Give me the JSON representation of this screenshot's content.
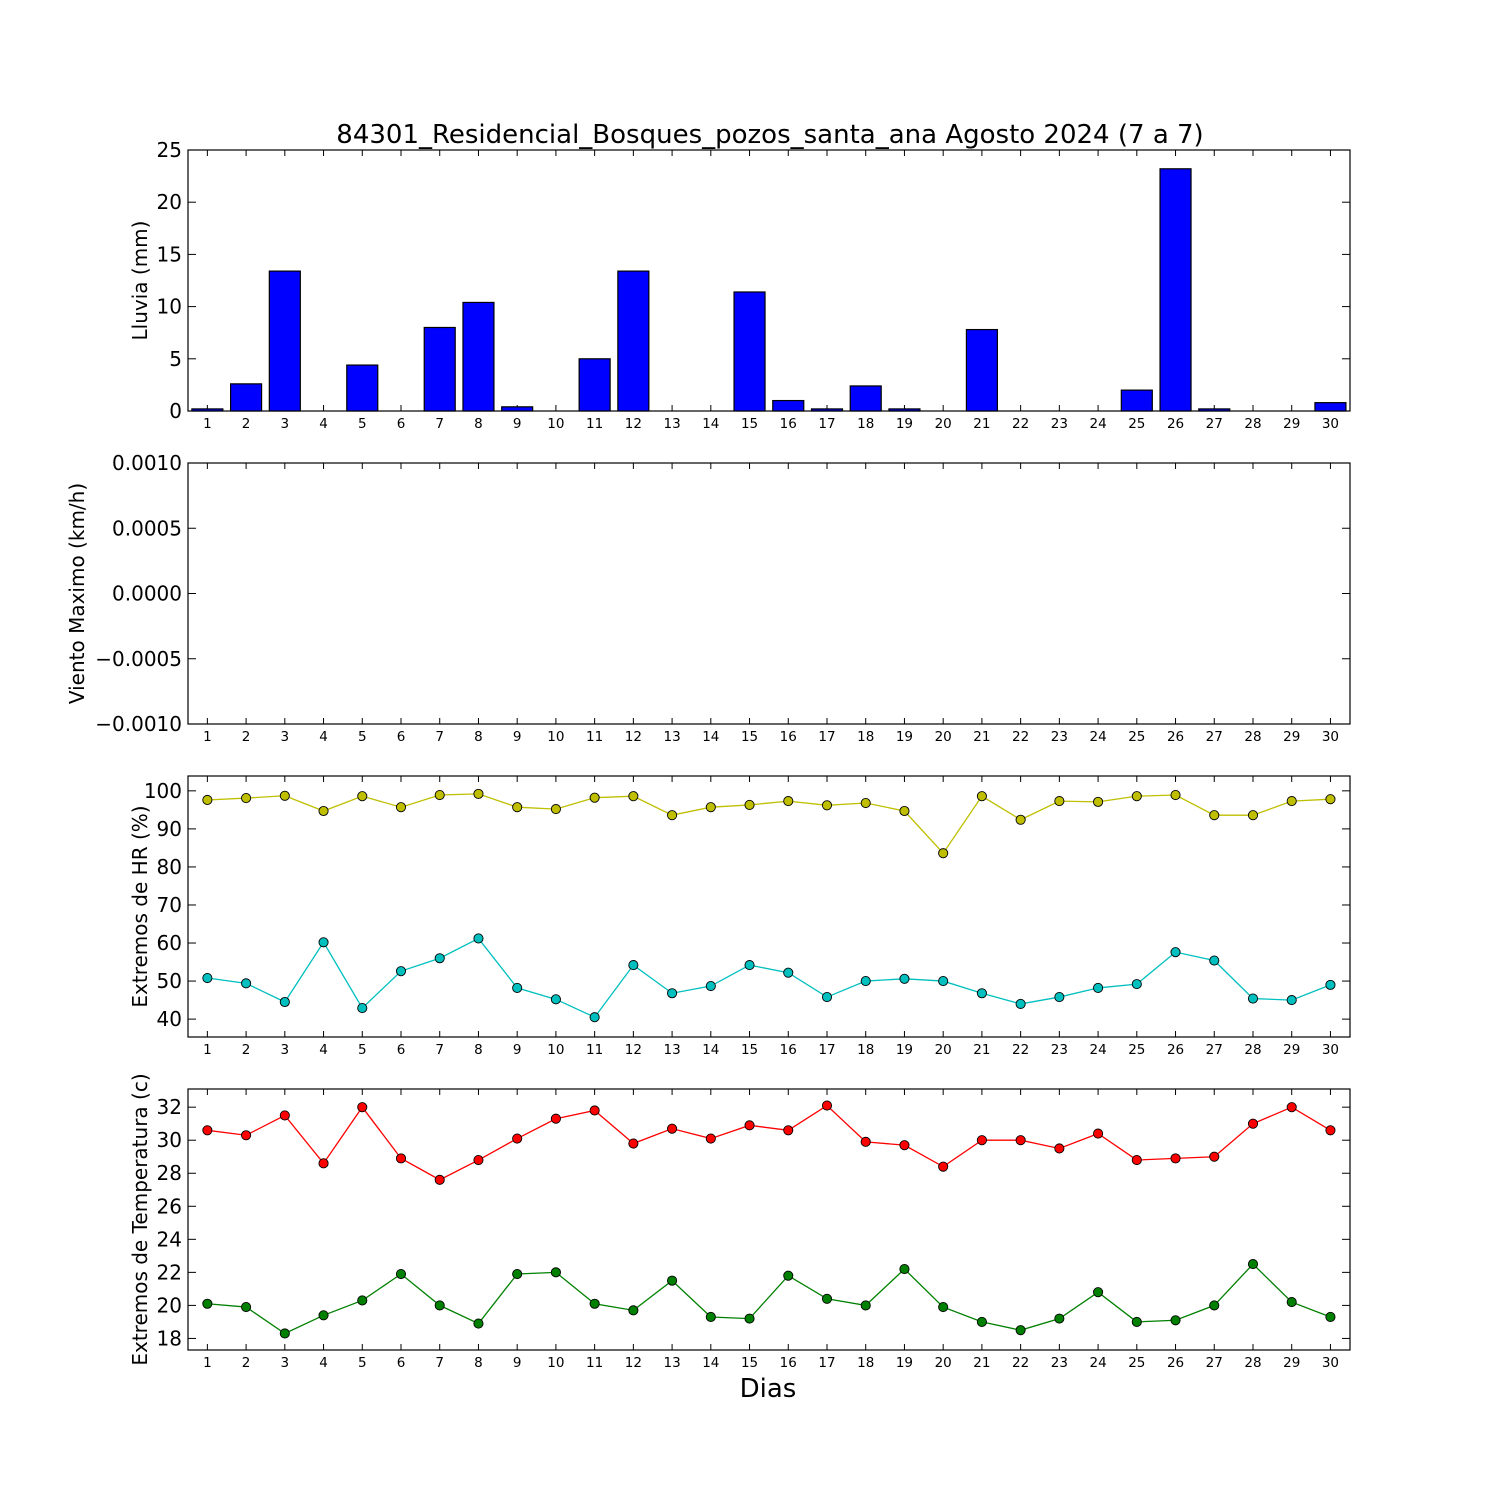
{
  "title": "84301_Residencial_Bosques_pozos_santa_ana Agosto 2024  (7 a 7)",
  "xlabel": "Dias",
  "colors": {
    "rain_bar": "#0000ff",
    "rh_max": "#bfbf00",
    "rh_min": "#00bfbf",
    "temp_max": "#ff0000",
    "temp_min": "#008000"
  },
  "chart_data": [
    {
      "type": "bar",
      "ylabel": "Lluvia (mm)",
      "categories": [
        "1",
        "2",
        "3",
        "4",
        "5",
        "6",
        "7",
        "8",
        "9",
        "10",
        "11",
        "12",
        "13",
        "14",
        "15",
        "16",
        "17",
        "18",
        "19",
        "20",
        "21",
        "22",
        "23",
        "24",
        "25",
        "26",
        "27",
        "28",
        "29",
        "30"
      ],
      "values": [
        0.2,
        2.6,
        13.4,
        0,
        4.4,
        0,
        8.0,
        10.4,
        0.4,
        0,
        5.0,
        13.4,
        0,
        0,
        11.4,
        1.0,
        0.2,
        2.4,
        0.2,
        0,
        7.8,
        0,
        0,
        0,
        2.0,
        23.2,
        0.2,
        0,
        0,
        0.8
      ],
      "ylim": [
        0,
        25
      ],
      "yticks": [
        "0",
        "5",
        "10",
        "15",
        "20",
        "25"
      ],
      "grid": false
    },
    {
      "type": "line",
      "ylabel": "Viento Maximo (km/h)",
      "categories": [
        "1",
        "2",
        "3",
        "4",
        "5",
        "6",
        "7",
        "8",
        "9",
        "10",
        "11",
        "12",
        "13",
        "14",
        "15",
        "16",
        "17",
        "18",
        "19",
        "20",
        "21",
        "22",
        "23",
        "24",
        "25",
        "26",
        "27",
        "28",
        "29",
        "30"
      ],
      "series": [],
      "ylim": [
        -0.001,
        0.001
      ],
      "yticks": [
        "−0.0010",
        "−0.0005",
        "0.0000",
        "0.0005",
        "0.0010"
      ],
      "grid": false
    },
    {
      "type": "line",
      "ylabel": "Extremos de HR (%)",
      "categories": [
        "1",
        "2",
        "3",
        "4",
        "5",
        "6",
        "7",
        "8",
        "9",
        "10",
        "11",
        "12",
        "13",
        "14",
        "15",
        "16",
        "17",
        "18",
        "19",
        "20",
        "21",
        "22",
        "23",
        "24",
        "25",
        "26",
        "27",
        "28",
        "29",
        "30"
      ],
      "series": [
        {
          "values": [
            97.6,
            98.1,
            98.7,
            94.7,
            98.6,
            95.7,
            98.9,
            99.2,
            95.7,
            95.2,
            98.2,
            98.6,
            93.6,
            95.7,
            96.3,
            97.3,
            96.2,
            96.8,
            94.7,
            83.6,
            98.6,
            92.4,
            97.3,
            97.1,
            98.6,
            98.9,
            93.6,
            93.6,
            97.3,
            97.8
          ]
        },
        {
          "values": [
            50.8,
            49.4,
            44.5,
            60.2,
            42.9,
            52.6,
            56.0,
            61.2,
            48.2,
            45.2,
            40.5,
            54.2,
            46.8,
            48.7,
            54.2,
            52.2,
            45.8,
            50.0,
            50.6,
            50.0,
            46.8,
            44.0,
            45.8,
            48.2,
            49.2,
            57.6,
            55.4,
            45.4,
            45.0,
            49.0
          ]
        }
      ],
      "ylim": [
        35.3,
        103.9
      ],
      "yticks": [
        "40",
        "50",
        "60",
        "70",
        "80",
        "90",
        "100"
      ],
      "grid": false
    },
    {
      "type": "line",
      "ylabel": "Extremos de Temperatura (c)",
      "xlabel": "Dias",
      "categories": [
        "1",
        "2",
        "3",
        "4",
        "5",
        "6",
        "7",
        "8",
        "9",
        "10",
        "11",
        "12",
        "13",
        "14",
        "15",
        "16",
        "17",
        "18",
        "19",
        "20",
        "21",
        "22",
        "23",
        "24",
        "25",
        "26",
        "27",
        "28",
        "29",
        "30"
      ],
      "series": [
        {
          "values": [
            30.6,
            30.3,
            31.5,
            28.6,
            32.0,
            28.9,
            27.6,
            28.8,
            30.1,
            31.3,
            31.8,
            29.8,
            30.7,
            30.1,
            30.9,
            30.6,
            32.1,
            29.9,
            29.7,
            28.4,
            30.0,
            30.0,
            29.5,
            30.4,
            28.8,
            28.9,
            29.0,
            31.0,
            32.0,
            30.6
          ]
        },
        {
          "values": [
            20.1,
            19.9,
            18.3,
            19.4,
            20.3,
            21.9,
            20.0,
            18.9,
            21.9,
            22.0,
            20.1,
            19.7,
            21.5,
            19.3,
            19.2,
            21.8,
            20.4,
            20.0,
            22.2,
            19.9,
            19.0,
            18.5,
            19.2,
            20.8,
            19.0,
            19.1,
            20.0,
            22.5,
            20.2,
            19.3
          ]
        }
      ],
      "ylim": [
        17.3,
        33.1
      ],
      "yticks": [
        "18",
        "20",
        "22",
        "24",
        "26",
        "28",
        "30",
        "32"
      ],
      "grid": false
    }
  ]
}
